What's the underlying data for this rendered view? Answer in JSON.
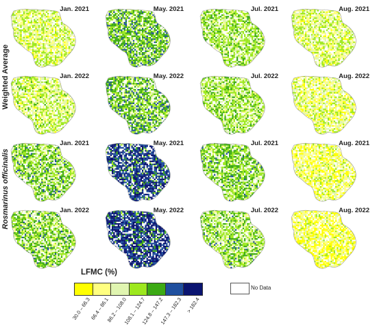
{
  "row_labels": [
    "Weighted Average",
    "Rosmarinus officinalis"
  ],
  "panels": [
    {
      "title": "Jan. 2021",
      "classes": [
        0.1,
        0.3,
        0.25,
        0.35,
        0.0,
        0.0,
        0.0
      ]
    },
    {
      "title": "May. 2021",
      "classes": [
        0.0,
        0.05,
        0.1,
        0.35,
        0.35,
        0.15,
        0.0
      ]
    },
    {
      "title": "Jul. 2021",
      "classes": [
        0.0,
        0.1,
        0.25,
        0.45,
        0.2,
        0.0,
        0.0
      ]
    },
    {
      "title": "Aug. 2021",
      "classes": [
        0.1,
        0.35,
        0.25,
        0.3,
        0.0,
        0.0,
        0.0
      ]
    },
    {
      "title": "Jan. 2022",
      "classes": [
        0.05,
        0.3,
        0.2,
        0.4,
        0.05,
        0.0,
        0.0
      ]
    },
    {
      "title": "May. 2022",
      "classes": [
        0.0,
        0.05,
        0.15,
        0.3,
        0.35,
        0.15,
        0.0
      ]
    },
    {
      "title": "Jul. 2022",
      "classes": [
        0.0,
        0.1,
        0.25,
        0.45,
        0.2,
        0.0,
        0.0
      ]
    },
    {
      "title": "Aug. 2022",
      "classes": [
        0.2,
        0.35,
        0.25,
        0.2,
        0.0,
        0.0,
        0.0
      ]
    },
    {
      "title": "Jan. 2021",
      "classes": [
        0.0,
        0.1,
        0.2,
        0.35,
        0.3,
        0.05,
        0.0
      ]
    },
    {
      "title": "May. 2021",
      "classes": [
        0.0,
        0.0,
        0.05,
        0.05,
        0.1,
        0.4,
        0.4
      ]
    },
    {
      "title": "Jul. 2021",
      "classes": [
        0.0,
        0.05,
        0.2,
        0.4,
        0.3,
        0.05,
        0.0
      ]
    },
    {
      "title": "Aug. 2021",
      "classes": [
        0.3,
        0.35,
        0.2,
        0.15,
        0.0,
        0.0,
        0.0
      ]
    },
    {
      "title": "Jan. 2022",
      "classes": [
        0.0,
        0.1,
        0.2,
        0.35,
        0.3,
        0.05,
        0.0
      ]
    },
    {
      "title": "May. 2022",
      "classes": [
        0.0,
        0.0,
        0.0,
        0.05,
        0.1,
        0.35,
        0.5
      ]
    },
    {
      "title": "Jul. 2022",
      "classes": [
        0.0,
        0.1,
        0.25,
        0.4,
        0.2,
        0.05,
        0.0
      ]
    },
    {
      "title": "Aug. 2022",
      "classes": [
        0.4,
        0.35,
        0.15,
        0.1,
        0.0,
        0.0,
        0.0
      ]
    }
  ],
  "legend": {
    "title": "LFMC (%)",
    "classes": [
      {
        "label": "30.0 – 66.3",
        "color": "#ffff00"
      },
      {
        "label": "66.4 – 86.1",
        "color": "#ffff80"
      },
      {
        "label": "86.2 – 108.0",
        "color": "#e0f5b0"
      },
      {
        "label": "108.1 – 124.7",
        "color": "#9de81e"
      },
      {
        "label": "124.8 – 147.2",
        "color": "#3caa14"
      },
      {
        "label": "147.3 – 182.3",
        "color": "#1f4f9e"
      },
      {
        "label": "> 182.4",
        "color": "#0a1470"
      }
    ],
    "nodata_label": "No Data"
  }
}
